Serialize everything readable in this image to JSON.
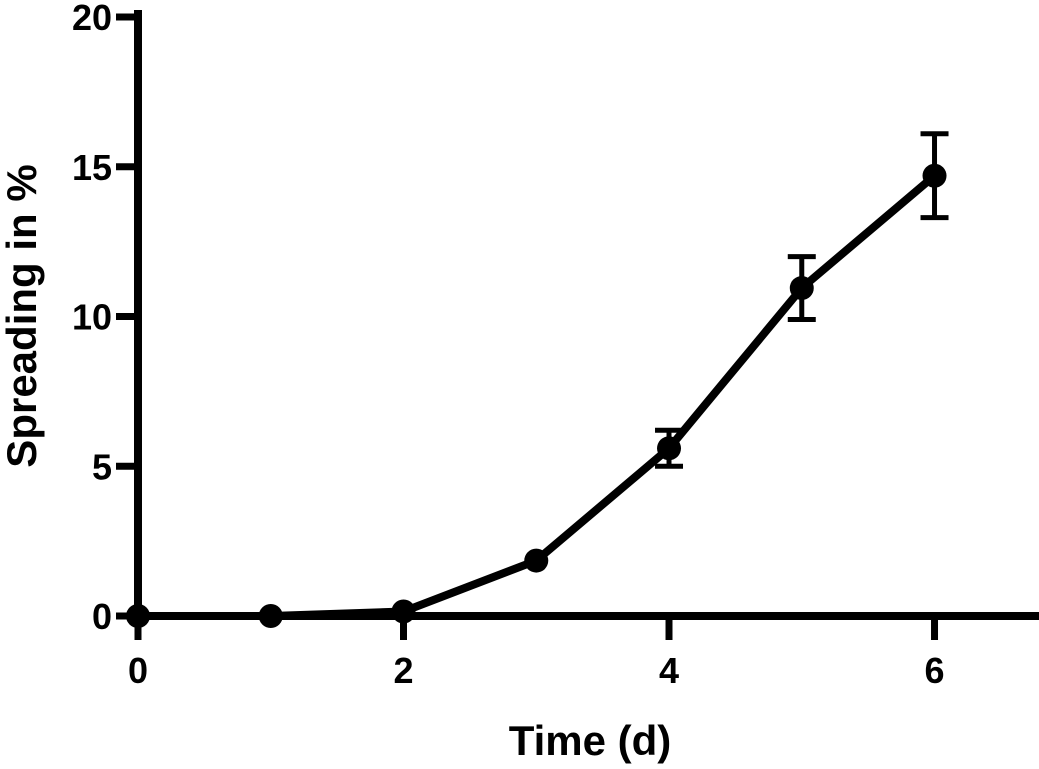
{
  "chart_data": {
    "type": "line",
    "title": "",
    "xlabel": "Time (d)",
    "ylabel": "Spreading in %",
    "xlim": [
      0,
      6.5
    ],
    "ylim": [
      0,
      20
    ],
    "x_ticks": [
      0,
      2,
      4,
      6
    ],
    "y_ticks": [
      0,
      5,
      10,
      15,
      20
    ],
    "x_tick_labels": [
      "0",
      "2",
      "4",
      "6"
    ],
    "y_tick_labels": [
      "0",
      "5",
      "10",
      "15",
      "20"
    ],
    "grid": false,
    "legend": "none",
    "series": [
      {
        "color": "#000000",
        "marker": "circle",
        "x": [
          0,
          1,
          2,
          3,
          4,
          5,
          6
        ],
        "y": [
          0,
          0,
          0.15,
          1.85,
          5.6,
          10.95,
          14.7
        ],
        "error": [
          0,
          0,
          0,
          0,
          0.6,
          1.05,
          1.4
        ]
      }
    ]
  }
}
